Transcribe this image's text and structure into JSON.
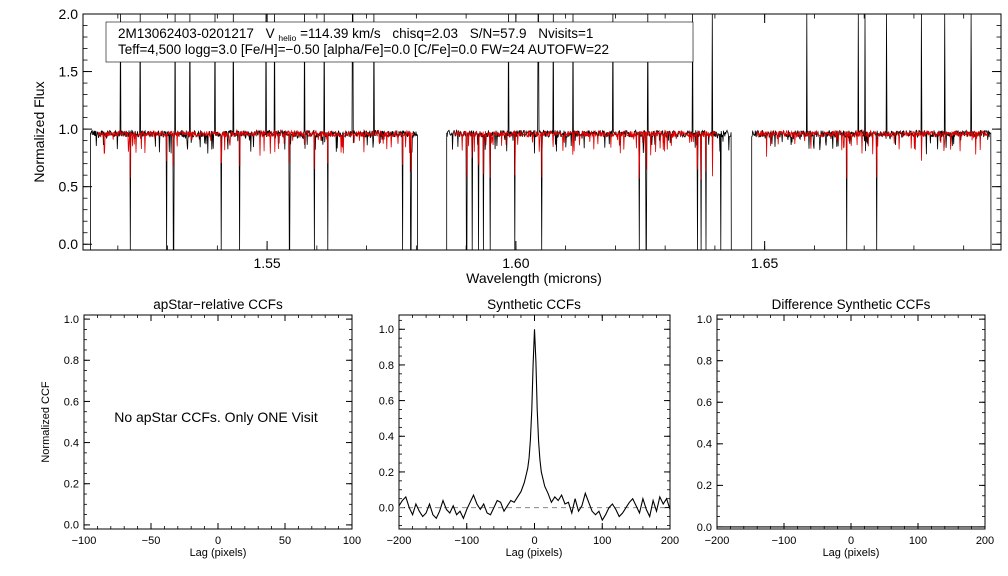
{
  "colors": {
    "observed": "#000000",
    "model": "#e00000",
    "axis": "#000000",
    "dashed": "#888888"
  },
  "spectrum": {
    "header": {
      "object": "2M13062403-0201217",
      "vhelio_label": "V",
      "vhelio_sub": "helio",
      "vhelio_value": "=114.39 km/s",
      "chisq": "chisq=2.03",
      "snr": "S/N=57.9",
      "nvisits": "Nvisits=1",
      "line2": "Teff=4,500 logg=3.0 [Fe/H]=−0.50 [alpha/Fe]=0.0 [C/Fe]=0.0 FW=24 AUTOFW=22"
    },
    "xlabel": "Wavelength (microns)",
    "ylabel": "Normalized Flux"
  },
  "chart_data": [
    {
      "type": "line",
      "name": "spectrum",
      "title": "",
      "xlabel": "Wavelength (microns)",
      "ylabel": "Normalized Flux",
      "xlim": [
        1.513,
        1.6975
      ],
      "ylim": [
        -0.05,
        2.0
      ],
      "xticks": [
        1.55,
        1.6,
        1.65
      ],
      "xtick_labels": [
        "1.55",
        "1.60",
        "1.65"
      ],
      "yticks": [
        0.0,
        0.5,
        1.0,
        1.5,
        2.0
      ],
      "ytick_labels": [
        "0.0",
        "0.5",
        "1.0",
        "1.5",
        "2.0"
      ],
      "continuum": 0.96,
      "detector_chips": [
        [
          1.5145,
          1.5802
        ],
        [
          1.5861,
          1.6433
        ],
        [
          1.6474,
          1.6955
        ]
      ],
      "model_ranges": [
        [
          1.516,
          1.5795
        ],
        [
          1.5875,
          1.6405
        ],
        [
          1.6485,
          1.695
        ]
      ],
      "emission_spikes": [
        1.5205,
        1.5245,
        1.5315,
        1.5345,
        1.5395,
        1.5432,
        1.5498,
        1.5515,
        1.5575,
        1.5615,
        1.5672,
        1.5715,
        1.5805,
        1.5985,
        1.6045,
        1.6075,
        1.6115,
        1.6195,
        1.6265,
        1.6355,
        1.6395,
        1.6585,
        1.6688,
        1.6702,
        1.6745,
        1.6815,
        1.6862,
        1.6915
      ],
      "absorption_lines": [
        1.5225,
        1.5298,
        1.5312,
        1.5408,
        1.5445,
        1.5545,
        1.5595,
        1.5622,
        1.5772,
        1.5789,
        1.5901,
        1.5912,
        1.5925,
        1.5935,
        1.5948,
        1.5998,
        1.6052,
        1.6248,
        1.6262,
        1.6365,
        1.6372,
        1.6382,
        1.6395,
        1.6412,
        1.6665,
        1.6725,
        1.6815
      ]
    },
    {
      "type": "line",
      "name": "apstar-ccf",
      "title": "apStar−relative CCFs",
      "xlabel": "Lag (pixels)",
      "ylabel": "Normalized CCF",
      "xlim": [
        -100,
        100
      ],
      "ylim": [
        -0.02,
        1.02
      ],
      "xticks": [
        -100,
        -50,
        0,
        50,
        100
      ],
      "xtick_labels": [
        "−100",
        "−50",
        "0",
        "50",
        "100"
      ],
      "yticks": [
        0.0,
        0.2,
        0.4,
        0.6,
        0.8,
        1.0
      ],
      "ytick_labels": [
        "0.0",
        "0.2",
        "0.4",
        "0.6",
        "0.8",
        "1.0"
      ],
      "note": "No apStar CCFs.  Only ONE Visit",
      "x": [],
      "y": []
    },
    {
      "type": "line",
      "name": "synthetic-ccf",
      "title": "Synthetic CCFs",
      "xlabel": "Lag (pixels)",
      "ylabel": "",
      "xlim": [
        -200,
        200
      ],
      "ylim": [
        -0.12,
        1.08
      ],
      "xticks": [
        -200,
        -100,
        0,
        100,
        200
      ],
      "xtick_labels": [
        "−200",
        "−100",
        "0",
        "100",
        "200"
      ],
      "yticks": [
        0.0,
        0.2,
        0.4,
        0.6,
        0.8,
        1.0
      ],
      "ytick_labels": [
        "0.0",
        "0.2",
        "0.4",
        "0.6",
        "0.8",
        "1.0"
      ],
      "zero_line": 0.0,
      "x": [
        -200,
        -195,
        -190,
        -185,
        -180,
        -175,
        -170,
        -165,
        -160,
        -155,
        -150,
        -145,
        -140,
        -135,
        -130,
        -125,
        -120,
        -115,
        -110,
        -105,
        -100,
        -95,
        -90,
        -85,
        -80,
        -75,
        -70,
        -65,
        -60,
        -55,
        -50,
        -45,
        -40,
        -35,
        -30,
        -25,
        -20,
        -15,
        -10,
        -8,
        -6,
        -4,
        -2,
        0,
        2,
        4,
        6,
        8,
        10,
        15,
        20,
        25,
        30,
        35,
        40,
        45,
        50,
        55,
        60,
        65,
        70,
        75,
        80,
        85,
        90,
        95,
        100,
        105,
        110,
        115,
        120,
        125,
        130,
        135,
        140,
        145,
        150,
        155,
        160,
        165,
        170,
        175,
        180,
        185,
        190,
        195,
        200
      ],
      "y": [
        0.01,
        0.04,
        0.06,
        0.0,
        -0.04,
        0.02,
        -0.02,
        -0.05,
        -0.03,
        0.02,
        -0.04,
        -0.06,
        -0.02,
        0.04,
        -0.01,
        -0.03,
        0.01,
        -0.04,
        -0.02,
        -0.06,
        -0.01,
        0.03,
        0.07,
        0.02,
        -0.01,
        0.02,
        -0.03,
        -0.04,
        0.0,
        0.04,
        0.03,
        -0.02,
        0.01,
        0.04,
        0.03,
        0.06,
        0.09,
        0.14,
        0.22,
        0.28,
        0.38,
        0.55,
        0.8,
        1.0,
        0.82,
        0.55,
        0.37,
        0.27,
        0.2,
        0.12,
        0.08,
        0.03,
        0.06,
        0.04,
        0.07,
        0.02,
        0.03,
        -0.03,
        0.05,
        -0.02,
        0.01,
        0.08,
        0.03,
        -0.02,
        -0.04,
        -0.02,
        -0.07,
        -0.04,
        0.0,
        0.02,
        -0.01,
        -0.05,
        -0.03,
        0.0,
        0.03,
        0.05,
        0.01,
        -0.03,
        0.05,
        -0.01,
        -0.05,
        0.04,
        -0.02,
        0.06,
        0.02,
        0.05,
        -0.01
      ]
    },
    {
      "type": "line",
      "name": "difference-ccf",
      "title": "Difference Synthetic CCFs",
      "xlabel": "Lag (pixels)",
      "ylabel": "",
      "xlim": [
        -200,
        200
      ],
      "ylim": [
        -0.01,
        1.02
      ],
      "xticks": [
        -200,
        -100,
        0,
        100,
        200
      ],
      "xtick_labels": [
        "−200",
        "−100",
        "0",
        "100",
        "200"
      ],
      "yticks": [
        0.0,
        0.2,
        0.4,
        0.6,
        0.8,
        1.0
      ],
      "ytick_labels": [
        "0.0",
        "0.2",
        "0.4",
        "0.6",
        "0.8",
        "1.0"
      ],
      "x": [
        -200,
        200
      ],
      "y": [
        0.0,
        0.0
      ]
    }
  ]
}
